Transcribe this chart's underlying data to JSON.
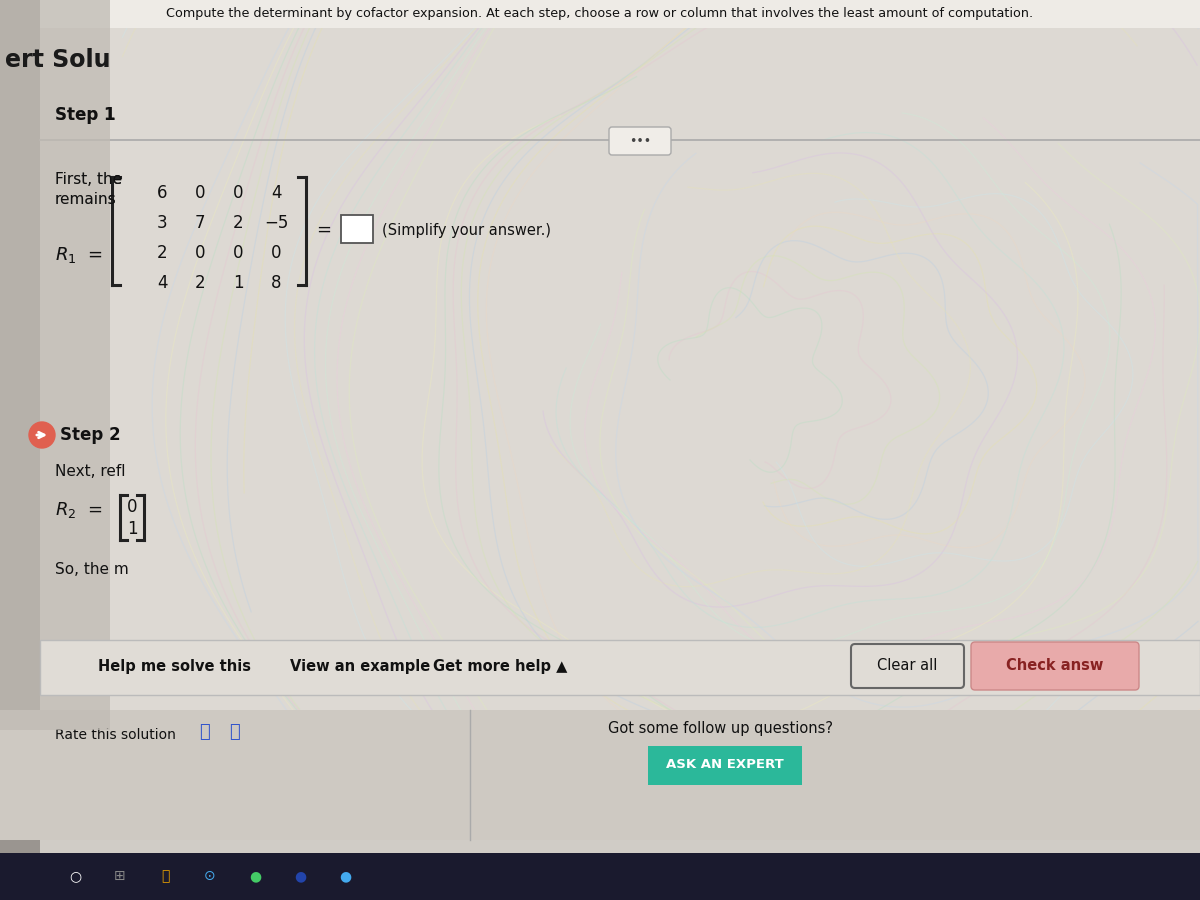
{
  "bg_color": "#d0ccc6",
  "main_panel_bg": "#e8e4de",
  "left_strip_bg": "#b8b4ae",
  "header_text": "Compute the determinant by cofactor expansion. At each step, choose a row or column that involves the least amount of computation.",
  "header_color": "#111111",
  "left_text": "ert Solu",
  "step1_label": "Step 1",
  "first_line1": "First, the",
  "first_line2": "remains",
  "r1_label": "R₁ =",
  "matrix_rows": [
    [
      "6",
      "0",
      "0",
      "4"
    ],
    [
      "3",
      "7",
      "2",
      "−5"
    ],
    [
      "2",
      "0",
      "0",
      "0"
    ],
    [
      "4",
      "2",
      "1",
      "8"
    ]
  ],
  "simplify_text": "(Simplify your answer.)",
  "step2_label": "Step 2",
  "next_text": "Next, refl",
  "r2_label": "R₂ =",
  "r2_vals": [
    "0",
    "1"
  ],
  "so_text": "So, the m",
  "dots_text": "•••",
  "links": [
    "Help me solve this",
    "View an example",
    "Get more help ▲"
  ],
  "clear_text": "Clear all",
  "check_text": "Check answ",
  "rate_text": "Rate this solution",
  "follow_text": "Got some follow up questions?",
  "ask_text": "ASK AN EXPERT",
  "ask_color": "#2bb89a",
  "arrow_color": "#e06050",
  "taskbar_color": "#1a1a2e",
  "wave_colors": [
    "#b0e0c0",
    "#e8c0d0",
    "#d0e8a8",
    "#b0cce8",
    "#e8e4a0",
    "#f0d8c0",
    "#c8e8f0",
    "#e8e4b0",
    "#d8b8e8",
    "#b8e4d8",
    "#c8f0d8",
    "#f0c8e0",
    "#e0f0b8",
    "#c0d8f0",
    "#f0f0b8"
  ]
}
